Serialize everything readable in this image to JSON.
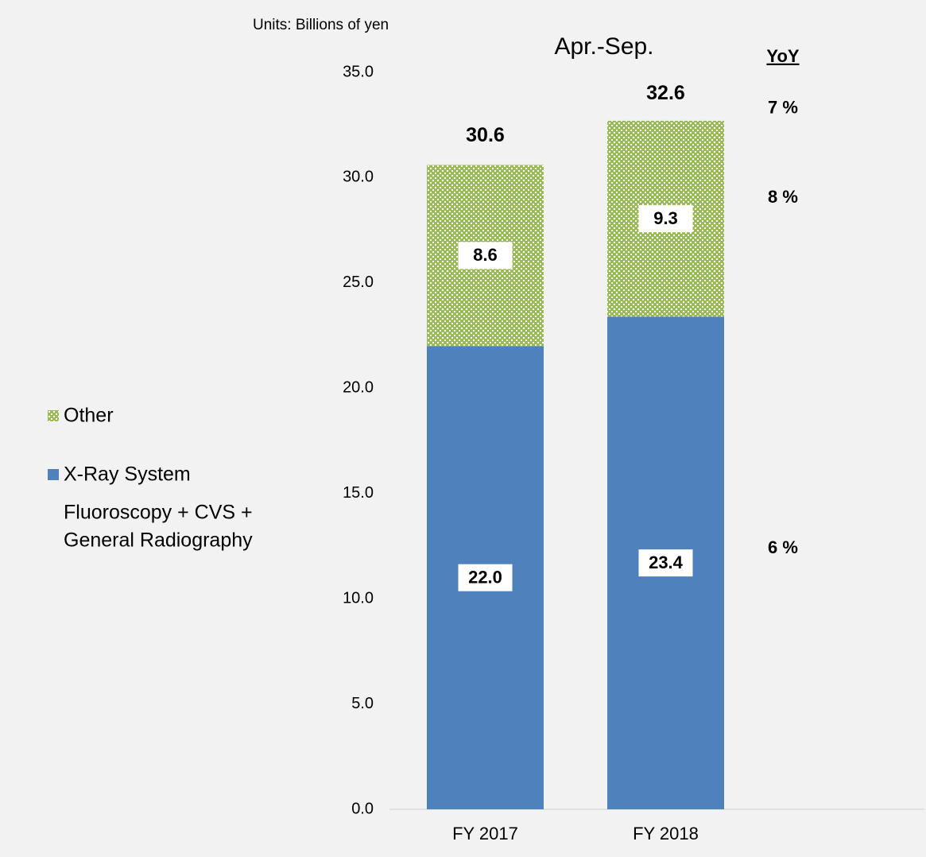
{
  "chart_data": {
    "type": "stacked_bar",
    "title": "Apr.-Sep.",
    "subtitle": "Units: Billions of yen",
    "categories": [
      "FY 2017",
      "FY 2018"
    ],
    "series": [
      {
        "name": "X-Ray System",
        "color": "#4f81bd",
        "values": [
          22.0,
          23.4
        ],
        "value_labels": [
          "22.0",
          "23.4"
        ]
      },
      {
        "name": "Other",
        "color": "#9bbb59",
        "values": [
          8.6,
          9.3
        ],
        "value_labels": [
          "8.6",
          "9.3"
        ]
      }
    ],
    "totals": [
      30.6,
      32.6
    ],
    "legend_note": [
      "Fluoroscopy + CVS +",
      "General Radiography"
    ],
    "yoy": {
      "title": "YoY",
      "total": "7 %",
      "series": [
        "6 %",
        "8 %"
      ]
    },
    "ylim": [
      0,
      35
    ],
    "yticks": [
      {
        "value": 0,
        "label": "0.0"
      },
      {
        "value": 5,
        "label": "5.0"
      },
      {
        "value": 10,
        "label": "10.0"
      },
      {
        "value": 15,
        "label": "15.0"
      },
      {
        "value": 20,
        "label": "20.0"
      },
      {
        "value": 25,
        "label": "25.0"
      },
      {
        "value": 30,
        "label": "30.0"
      },
      {
        "value": 35,
        "label": "35.0"
      }
    ],
    "legend": "left",
    "grid": false
  }
}
